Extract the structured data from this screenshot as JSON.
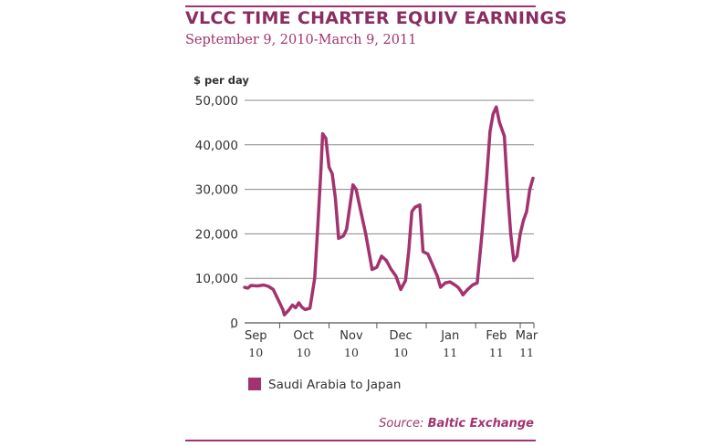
{
  "header": {
    "title": "VLCC TIME CHARTER EQUIV EARNINGS",
    "subtitle": "September 9, 2010-March 9, 2011"
  },
  "footer": {
    "source_label": "Source:",
    "source_value": "Baltic Exchange"
  },
  "colors": {
    "accent": "#a3336f",
    "series": "#a3336f",
    "grid": "#888888",
    "text": "#333333"
  },
  "chart_data": {
    "type": "line",
    "title": "VLCC TIME CHARTER EQUIV EARNINGS",
    "subtitle": "September 9, 2010-March 9, 2011",
    "ylabel": "$ per day",
    "xlabel": "",
    "ylim": [
      0,
      50000
    ],
    "yticks": [
      0,
      10000,
      20000,
      30000,
      40000,
      50000
    ],
    "ytick_labels": [
      "0",
      "10,000",
      "20,000",
      "30,000",
      "40,000",
      "50,000"
    ],
    "xlim": [
      "2010-09-09",
      "2011-03-09"
    ],
    "month_ticks": [
      "2010-09-01",
      "2010-10-01",
      "2010-11-01",
      "2010-12-01",
      "2011-01-01",
      "2011-02-01",
      "2011-03-01"
    ],
    "month_labels": [
      {
        "line1": "Sep",
        "line2": "10",
        "date": "2010-09-16"
      },
      {
        "line1": "Oct",
        "line2": "10",
        "date": "2010-10-16"
      },
      {
        "line1": "Nov",
        "line2": "10",
        "date": "2010-11-15"
      },
      {
        "line1": "Dec",
        "line2": "10",
        "date": "2010-12-16"
      },
      {
        "line1": "Jan",
        "line2": "11",
        "date": "2011-01-16"
      },
      {
        "line1": "Feb",
        "line2": "11",
        "date": "2011-02-14"
      },
      {
        "line1": "Mar",
        "line2": "11",
        "date": "2011-03-05"
      }
    ],
    "grid": true,
    "legend_position": "bottom-left",
    "series": [
      {
        "name": "Saudi Arabia to Japan",
        "color": "#a3336f",
        "points": [
          [
            "2010-09-09",
            8000
          ],
          [
            "2010-09-11",
            7800
          ],
          [
            "2010-09-13",
            8400
          ],
          [
            "2010-09-17",
            8300
          ],
          [
            "2010-09-21",
            8500
          ],
          [
            "2010-09-24",
            8200
          ],
          [
            "2010-09-27",
            7500
          ],
          [
            "2010-09-29",
            6000
          ],
          [
            "2010-10-01",
            4500
          ],
          [
            "2010-10-03",
            3000
          ],
          [
            "2010-10-04",
            1800
          ],
          [
            "2010-10-07",
            3000
          ],
          [
            "2010-10-09",
            4000
          ],
          [
            "2010-10-11",
            3400
          ],
          [
            "2010-10-13",
            4500
          ],
          [
            "2010-10-15",
            3500
          ],
          [
            "2010-10-17",
            3000
          ],
          [
            "2010-10-20",
            3300
          ],
          [
            "2010-10-23",
            10000
          ],
          [
            "2010-10-25",
            22000
          ],
          [
            "2010-10-27",
            35000
          ],
          [
            "2010-10-28",
            42500
          ],
          [
            "2010-10-30",
            41500
          ],
          [
            "2010-11-01",
            35000
          ],
          [
            "2010-11-03",
            33500
          ],
          [
            "2010-11-05",
            28000
          ],
          [
            "2010-11-07",
            19000
          ],
          [
            "2010-11-10",
            19500
          ],
          [
            "2010-11-12",
            21000
          ],
          [
            "2010-11-14",
            26000
          ],
          [
            "2010-11-16",
            31000
          ],
          [
            "2010-11-18",
            30000
          ],
          [
            "2010-11-21",
            25000
          ],
          [
            "2010-11-24",
            20000
          ],
          [
            "2010-11-26",
            16000
          ],
          [
            "2010-11-28",
            12000
          ],
          [
            "2010-12-01",
            12500
          ],
          [
            "2010-12-04",
            15000
          ],
          [
            "2010-12-07",
            14000
          ],
          [
            "2010-12-10",
            12000
          ],
          [
            "2010-12-13",
            10500
          ],
          [
            "2010-12-16",
            7500
          ],
          [
            "2010-12-19",
            9500
          ],
          [
            "2010-12-21",
            16000
          ],
          [
            "2010-12-23",
            25000
          ],
          [
            "2010-12-25",
            26000
          ],
          [
            "2010-12-28",
            26500
          ],
          [
            "2010-12-30",
            16000
          ],
          [
            "2011-01-02",
            15500
          ],
          [
            "2011-01-05",
            13000
          ],
          [
            "2011-01-08",
            10500
          ],
          [
            "2011-01-10",
            8000
          ],
          [
            "2011-01-13",
            9000
          ],
          [
            "2011-01-16",
            9200
          ],
          [
            "2011-01-19",
            8500
          ],
          [
            "2011-01-21",
            8000
          ],
          [
            "2011-01-23",
            7000
          ],
          [
            "2011-01-24",
            6300
          ],
          [
            "2011-01-27",
            7500
          ],
          [
            "2011-01-30",
            8500
          ],
          [
            "2011-02-02",
            9000
          ],
          [
            "2011-02-05",
            20000
          ],
          [
            "2011-02-08",
            33000
          ],
          [
            "2011-02-10",
            43000
          ],
          [
            "2011-02-12",
            47000
          ],
          [
            "2011-02-14",
            48500
          ],
          [
            "2011-02-16",
            45000
          ],
          [
            "2011-02-18",
            43000
          ],
          [
            "2011-02-19",
            42000
          ],
          [
            "2011-02-21",
            30000
          ],
          [
            "2011-02-23",
            20000
          ],
          [
            "2011-02-25",
            14000
          ],
          [
            "2011-02-27",
            15000
          ],
          [
            "2011-03-01",
            20000
          ],
          [
            "2011-03-03",
            23000
          ],
          [
            "2011-03-05",
            25000
          ],
          [
            "2011-03-07",
            30000
          ],
          [
            "2011-03-09",
            32500
          ]
        ]
      }
    ]
  }
}
